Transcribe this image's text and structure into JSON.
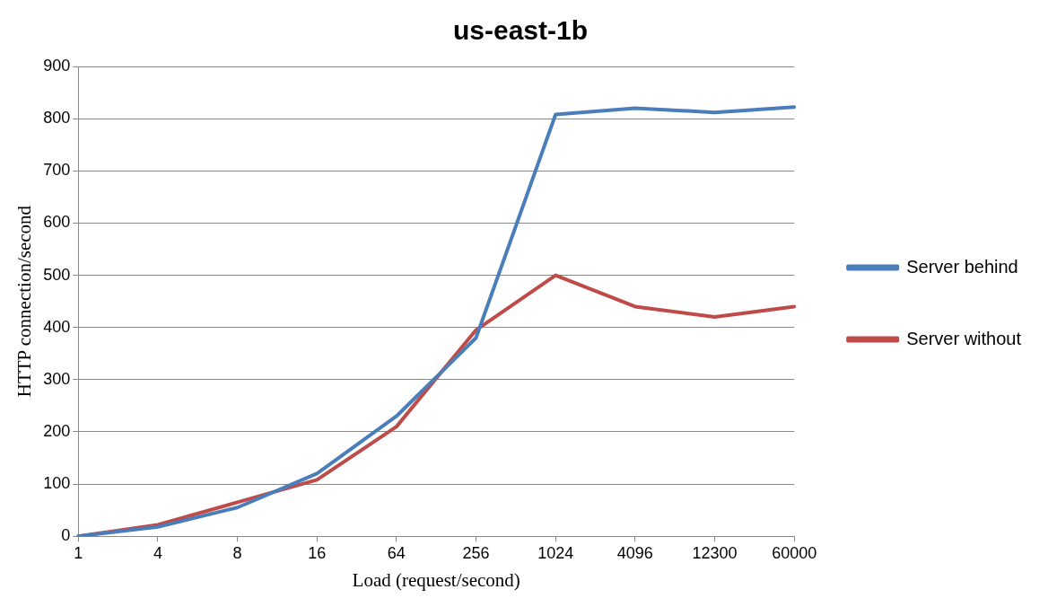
{
  "chart_data": {
    "type": "line",
    "title": "us-east-1b",
    "xlabel": "Load (request/second)",
    "ylabel": "HTTP connection/second",
    "categories": [
      "1",
      "4",
      "8",
      "16",
      "64",
      "256",
      "1024",
      "4096",
      "12300",
      "60000"
    ],
    "series": [
      {
        "name": "Server behind",
        "color": "#4a7ebb",
        "values": [
          0,
          18,
          55,
          120,
          230,
          380,
          808,
          820,
          812,
          822
        ]
      },
      {
        "name": "Server without",
        "color": "#be4b48",
        "values": [
          0,
          22,
          65,
          108,
          210,
          395,
          500,
          440,
          420,
          440
        ]
      }
    ],
    "ylim": [
      0,
      900
    ],
    "yticks": [
      0,
      100,
      200,
      300,
      400,
      500,
      600,
      700,
      800,
      900
    ],
    "grid": "y",
    "legend": "right",
    "marker": "none",
    "line_style": "solid"
  }
}
